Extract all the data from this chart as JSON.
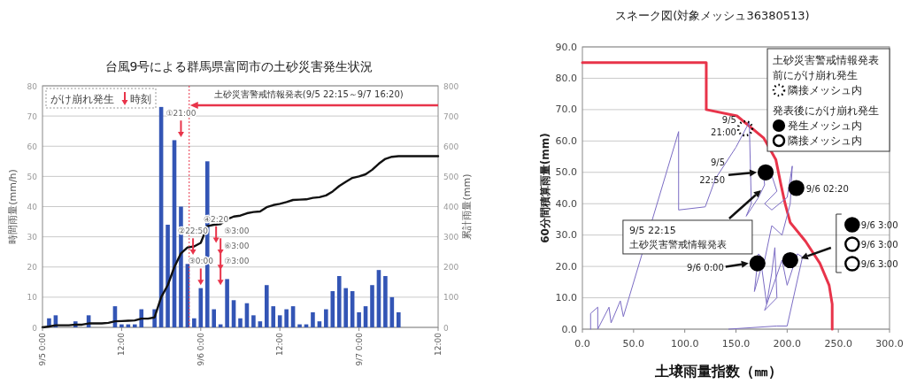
{
  "chart_data": [
    {
      "type": "bar",
      "title": "台風9号による群馬県富岡市の土砂災害発生状況",
      "ylabel": "時間雨量(mm/h)",
      "y2label": "累計雨量(mm)",
      "categories": [
        "9/5 0:00",
        null,
        null,
        null,
        null,
        null,
        null,
        null,
        null,
        null,
        null,
        null,
        "12:00",
        null,
        null,
        null,
        null,
        null,
        null,
        null,
        null,
        null,
        null,
        null,
        "9/6 0:00",
        null,
        null,
        null,
        null,
        null,
        null,
        null,
        null,
        null,
        null,
        null,
        "12:00",
        null,
        null,
        null,
        null,
        null,
        null,
        null,
        null,
        null,
        null,
        null,
        "9/7 0:00",
        null,
        null,
        null,
        null,
        null,
        null,
        null,
        null,
        null,
        null,
        null,
        "12:00"
      ],
      "ylim": [
        0,
        80
      ],
      "yticks": [
        0,
        10,
        20,
        30,
        40,
        50,
        60,
        70,
        80
      ],
      "y2lim": [
        0,
        800
      ],
      "y2ticks": [
        0,
        100,
        200,
        300,
        400,
        500,
        600,
        700,
        800
      ],
      "grid": "y",
      "series": [
        {
          "color": "#3355b5",
          "values": [
            null,
            3,
            4,
            null,
            null,
            2,
            null,
            4,
            null,
            null,
            null,
            7,
            1,
            1,
            1,
            6,
            null,
            6,
            73,
            34,
            62,
            40,
            21,
            3,
            13,
            55,
            6,
            1,
            16,
            9,
            3,
            8,
            4,
            2,
            14,
            7,
            4,
            6,
            7,
            1,
            1,
            5,
            2,
            6,
            12,
            17,
            13,
            12,
            5,
            7,
            14,
            19,
            17,
            10,
            5,
            null,
            null,
            null,
            null,
            null,
            null
          ]
        },
        {
          "type": "line",
          "axis": "y2",
          "color": "#111111",
          "values": [
            0,
            3,
            7,
            7,
            7,
            9,
            9,
            13,
            13,
            13,
            15,
            20,
            21,
            22,
            23,
            29,
            29,
            33,
            100,
            140,
            200,
            245,
            265,
            268,
            280,
            335,
            340,
            342,
            358,
            367,
            370,
            378,
            382,
            384,
            398,
            405,
            409,
            415,
            422,
            423,
            424,
            429,
            431,
            437,
            450,
            468,
            482,
            495,
            500,
            507,
            522,
            542,
            558,
            565,
            567,
            567,
            567,
            567,
            567,
            567,
            567
          ]
        }
      ],
      "annotations": [
        "がけ崩れ発生",
        "時刻",
        "土砂災害警戒情報発表(9/5 22:15～9/7 16:20)",
        "①21:00",
        "②22:50",
        "③0:00",
        "④2:20",
        "⑤3:00",
        "⑥3:00",
        "⑦3:00"
      ]
    },
    {
      "type": "line",
      "title": "スネーク図(対象メッシュ36380513)",
      "xlabel": "土壌雨量指数（㎜）",
      "ylabel": "60分間積算雨量(mm)",
      "xlim": [
        0,
        300
      ],
      "xticks": [
        {
          "value": 0,
          "label": "0.0"
        },
        {
          "value": 50,
          "label": "50.0"
        },
        {
          "value": 100,
          "label": "100.0"
        },
        {
          "value": 150,
          "label": "150.0"
        },
        {
          "value": 200,
          "label": "200.0"
        },
        {
          "value": 250,
          "label": "250.0"
        },
        {
          "value": 300,
          "label": "300.0"
        }
      ],
      "ylim": [
        0,
        90
      ],
      "yticks": [
        {
          "value": 0,
          "label": "0.0"
        },
        {
          "value": 10,
          "label": "10.0"
        },
        {
          "value": 20,
          "label": "20.0"
        },
        {
          "value": 30,
          "label": "30.0"
        },
        {
          "value": 40,
          "label": "40.0"
        },
        {
          "value": 50,
          "label": "50.0"
        },
        {
          "value": 60,
          "label": "60.0"
        },
        {
          "value": 70,
          "label": "70.0"
        },
        {
          "value": 80,
          "label": "80.0"
        },
        {
          "value": 90,
          "label": "90.0"
        }
      ],
      "grid": "y",
      "legend": "top right",
      "series": [
        {
          "color": "#e8344a",
          "x": [
            0,
            121,
            121,
            151,
            177,
            189,
            194,
            198,
            203,
            218,
            232,
            241,
            244,
            244
          ],
          "values": [
            85,
            85,
            70,
            68,
            61,
            54,
            46,
            40,
            34,
            28,
            21,
            14,
            8,
            0
          ]
        },
        {
          "color": "#7b6cc4",
          "x": [
            8,
            8,
            15,
            15,
            26,
            28,
            37,
            40,
            94,
            94,
            120,
            130,
            150,
            163,
            165,
            160,
            172,
            178,
            176,
            185,
            190,
            178,
            185,
            200,
            203,
            205,
            203,
            195,
            185,
            178,
            172,
            168,
            175,
            180,
            185,
            188,
            190,
            178,
            195,
            200,
            210,
            215,
            200,
            190,
            143
          ],
          "values": [
            0,
            5,
            7,
            0,
            7,
            2,
            9,
            4,
            63,
            38,
            39,
            48,
            58,
            66,
            40,
            36,
            42,
            46,
            52,
            49,
            44,
            40,
            38,
            42,
            48,
            52,
            40,
            30,
            33,
            22,
            24,
            12,
            20,
            8,
            18,
            26,
            10,
            6,
            22,
            14,
            24,
            23,
            1,
            1,
            0
          ]
        },
        {
          "type": "scatter",
          "name": "隣接メッシュ内",
          "color": "#000000",
          "line_style": "dotted",
          "x": [
            159
          ],
          "values": [
            64
          ]
        },
        {
          "type": "scatter",
          "name": "発生メッシュ内",
          "color": "#000000",
          "x": [
            179,
            209,
            171,
            203
          ],
          "values": [
            50,
            45,
            21,
            22
          ]
        }
      ],
      "annotations": [
        "土砂災害警戒情報発表前にがけ崩れ発生",
        "発表後にがけ崩れ発生",
        "隣接メッシュ内",
        "9/5 21:00",
        "9/5 22:50",
        "9/6 02:20",
        "9/6 0:00",
        "9/5 22:15 土砂災害警戒情報発表",
        "9/6 3:00",
        "9/6 3:00",
        "9/6 3:00"
      ]
    }
  ]
}
